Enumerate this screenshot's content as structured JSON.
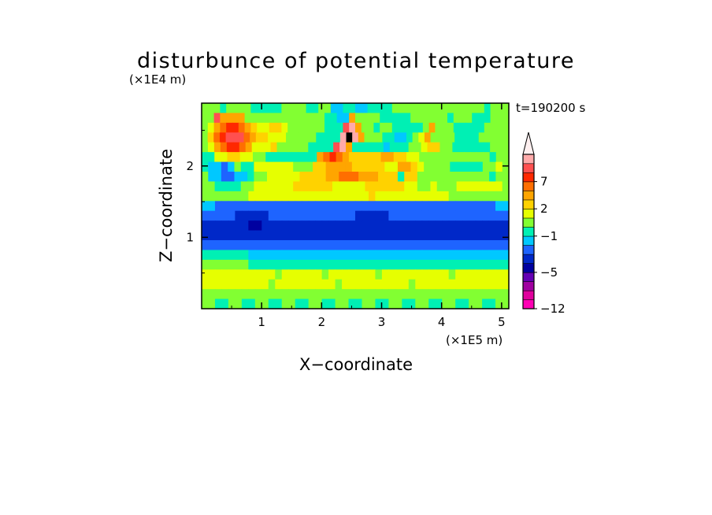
{
  "chart_data": {
    "type": "heatmap",
    "title": "disturbunce of potential temperature",
    "annotation": "t=190200 s",
    "xlabel": "X−coordinate",
    "ylabel": "Z−coordinate",
    "x_unit": "(×1E5 m)",
    "y_unit": "(×1E4 m)",
    "xlim": [
      0,
      5.12
    ],
    "ylim": [
      0,
      2.88
    ],
    "x_ticks": [
      "1",
      "2",
      "3",
      "4",
      "5"
    ],
    "y_ticks": [
      "1",
      "2"
    ],
    "colorbar": {
      "tick_labels": [
        "7",
        "2",
        "−1",
        "−5",
        "−12"
      ],
      "levels": [
        -12,
        -10,
        -8,
        -6,
        -5,
        -4,
        -3,
        -2,
        -1,
        0,
        1,
        2,
        3,
        5,
        7,
        9,
        11
      ],
      "colors": [
        "#ff00b4",
        "#e0009c",
        "#a000a0",
        "#6400b4",
        "#0000a0",
        "#0028c8",
        "#1e64ff",
        "#00c8ff",
        "#00f0b4",
        "#82ff32",
        "#e6ff00",
        "#ffd200",
        "#ffa500",
        "#ff6e00",
        "#ff2800",
        "#ff5050",
        "#ffaaaa"
      ],
      "extend_max": true
    },
    "field": {
      "rows_top_to_bottom": [
        "99989999888889999889977887788889999999999999998999",
        "99FCCCC99999999999998877C9999888889999998999888999",
        "9ACDEEDCBAABBA999999888FGC99899888889C999888889999",
        "9BDEFFFDCBBAAA999998888GHGC999887789AC9999888899999",
        "9ACDEEDCAAAB999998888FGC88888788899ABB99888888999",
        "88AABBAA9988888888CDEDCBBBBBCCBBAA99999999999899",
        "87767988AAAAAA999BBCCCCBBBBBAACCBA99998888899A9",
        "9776677899AAAAABBBBCCDDDCCCBBB8BB99999999999899",
        "99888899AAAAAABBBBBBAAAAABBBBBBAA99A999AAAAAAA9",
        "9999999AAAAAAAAAAAAAAAAAABAAAAAAAAAAA999999999",
        "7766666666666666666666666666666666666666666677",
        "6666655555666666666666655555666666666666666666",
        "5555555445555555555555555555555555555555555555",
        "5555555555555555555555555555555555555555555555",
        "6666666666666666666666666666666666666666666666",
        "8888888777777777777777777777777777777777777777",
        "9999999888888888888888888888888888888888888888",
        "AAAAAAAAAAA9AAAAAA9AAAAAAA9AAAAAAAAAA9AAAAAAAA",
        "AAAAAAAAAA9AAAAAAAAA9AAAAAAAAAA9AAAAAAAAAAAAAA",
        "9999999999999999999999999999999999999999999999",
        "9988998899889988998899889988998899889988998899"
      ]
    }
  }
}
